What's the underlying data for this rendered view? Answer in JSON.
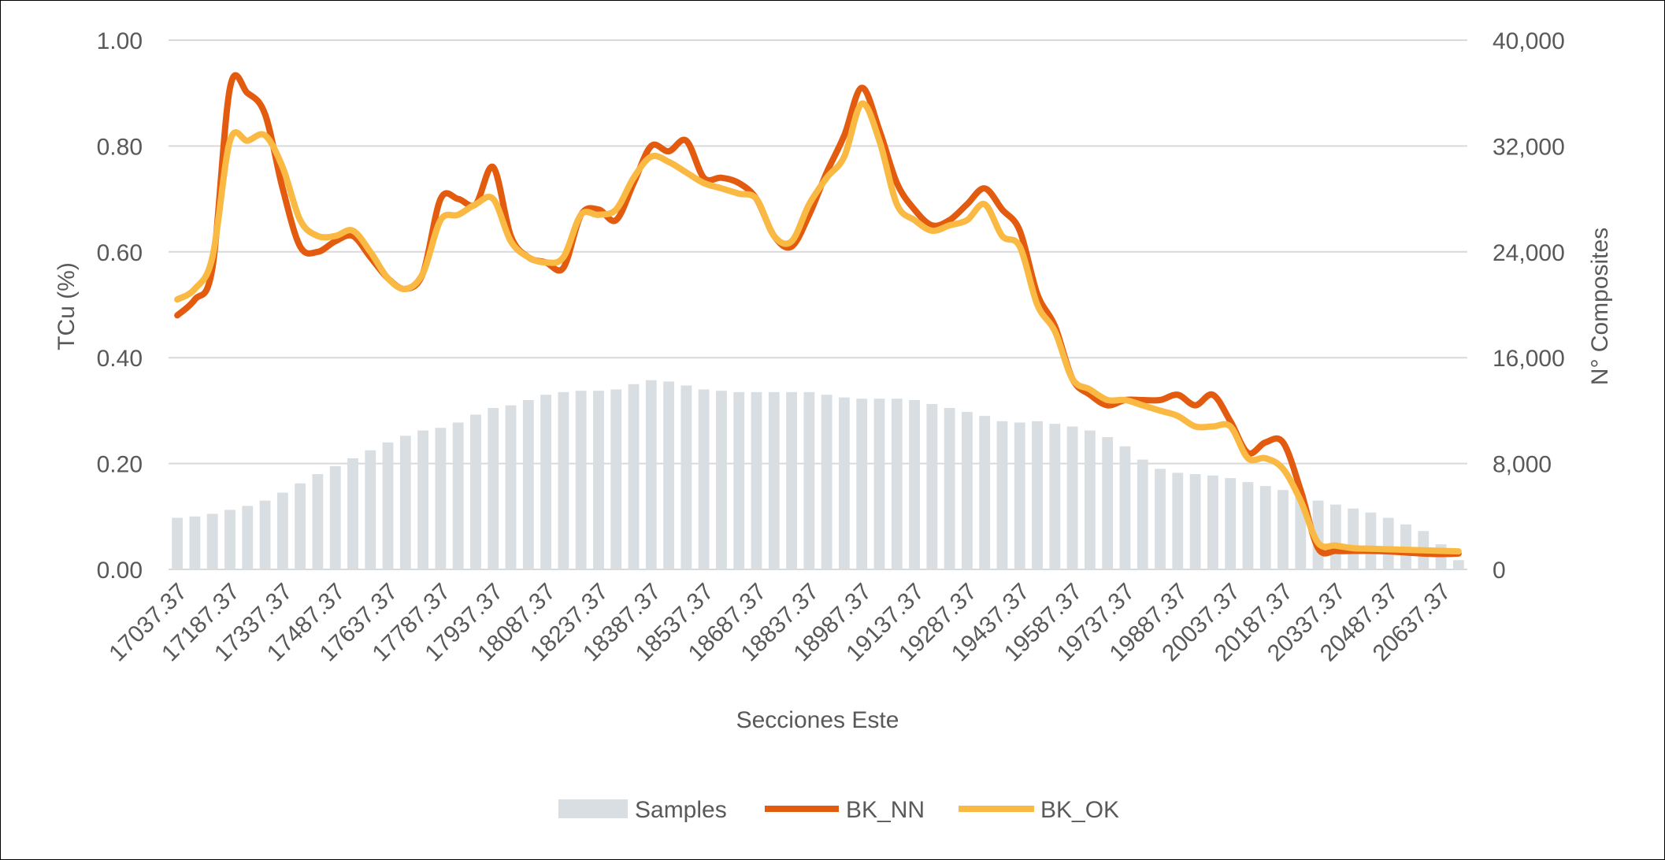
{
  "chart_data": {
    "type": "bar+line",
    "xlabel": "Secciones Este",
    "ylabel_left": "TCu (%)",
    "ylabel_right": "N° Composites",
    "ylim_left": [
      0,
      1
    ],
    "ylim_right": [
      0,
      40000
    ],
    "yticks_left": [
      "0.00",
      "0.20",
      "0.40",
      "0.60",
      "0.80",
      "1.00"
    ],
    "yticks_right": [
      "0",
      "8,000",
      "16,000",
      "24,000",
      "32,000",
      "40,000"
    ],
    "xtick_labels": [
      "17037.37",
      "17187.37",
      "17337.37",
      "17487.37",
      "17637.37",
      "17787.37",
      "17937.37",
      "18087.37",
      "18237.37",
      "18387.37",
      "18537.37",
      "18687.37",
      "18837.37",
      "18987.37",
      "19137.37",
      "19287.37",
      "19437.37",
      "19587.37",
      "19737.37",
      "19887.37",
      "20037.37",
      "20187.37",
      "20337.37",
      "20487.37",
      "20637.37"
    ],
    "x_start": 17037.37,
    "x_step": 50,
    "grid": true,
    "legend_position": "bottom",
    "colors": {
      "Samples": "#d9dee2",
      "BK_NN": "#e35b0e",
      "BK_OK": "#f9b942",
      "grid": "#d9d9d9",
      "text": "#595959"
    },
    "series": [
      {
        "name": "Samples",
        "kind": "bar",
        "axis": "right",
        "values": [
          3900,
          4000,
          4200,
          4500,
          4800,
          5200,
          5800,
          6500,
          7200,
          7800,
          8400,
          9000,
          9600,
          10100,
          10500,
          10700,
          11100,
          11700,
          12200,
          12400,
          12800,
          13200,
          13400,
          13500,
          13500,
          13600,
          14000,
          14300,
          14200,
          13900,
          13600,
          13500,
          13400,
          13400,
          13400,
          13400,
          13400,
          13200,
          13000,
          12900,
          12900,
          12900,
          12800,
          12500,
          12200,
          11900,
          11600,
          11200,
          11100,
          11200,
          11000,
          10800,
          10500,
          10000,
          9300,
          8300,
          7600,
          7300,
          7200,
          7100,
          6900,
          6600,
          6300,
          6000,
          5700,
          5200,
          4900,
          4600,
          4300,
          3900,
          3400,
          2900,
          1900,
          700
        ]
      },
      {
        "name": "BK_NN",
        "kind": "line",
        "axis": "left",
        "values": [
          0.48,
          0.51,
          0.57,
          0.91,
          0.9,
          0.86,
          0.72,
          0.61,
          0.6,
          0.62,
          0.63,
          0.59,
          0.55,
          0.53,
          0.56,
          0.7,
          0.7,
          0.69,
          0.76,
          0.63,
          0.59,
          0.58,
          0.57,
          0.67,
          0.68,
          0.66,
          0.73,
          0.8,
          0.79,
          0.81,
          0.74,
          0.74,
          0.73,
          0.7,
          0.63,
          0.61,
          0.67,
          0.75,
          0.82,
          0.91,
          0.83,
          0.73,
          0.68,
          0.65,
          0.66,
          0.69,
          0.72,
          0.68,
          0.64,
          0.52,
          0.46,
          0.36,
          0.33,
          0.31,
          0.32,
          0.32,
          0.32,
          0.33,
          0.31,
          0.33,
          0.28,
          0.22,
          0.24,
          0.24,
          0.15,
          0.04,
          0.035,
          0.035,
          0.035,
          0.034,
          0.032,
          0.03,
          0.029,
          0.03
        ]
      },
      {
        "name": "BK_OK",
        "kind": "line",
        "axis": "left",
        "values": [
          0.51,
          0.53,
          0.59,
          0.81,
          0.81,
          0.82,
          0.76,
          0.66,
          0.63,
          0.63,
          0.64,
          0.6,
          0.55,
          0.53,
          0.56,
          0.66,
          0.67,
          0.69,
          0.7,
          0.62,
          0.59,
          0.58,
          0.59,
          0.67,
          0.67,
          0.68,
          0.74,
          0.78,
          0.77,
          0.75,
          0.73,
          0.72,
          0.71,
          0.7,
          0.63,
          0.62,
          0.69,
          0.74,
          0.78,
          0.88,
          0.81,
          0.69,
          0.66,
          0.64,
          0.65,
          0.66,
          0.69,
          0.63,
          0.61,
          0.5,
          0.45,
          0.36,
          0.34,
          0.32,
          0.32,
          0.31,
          0.3,
          0.29,
          0.27,
          0.27,
          0.27,
          0.21,
          0.21,
          0.19,
          0.13,
          0.05,
          0.045,
          0.04,
          0.039,
          0.038,
          0.037,
          0.036,
          0.035,
          0.034
        ]
      }
    ]
  }
}
